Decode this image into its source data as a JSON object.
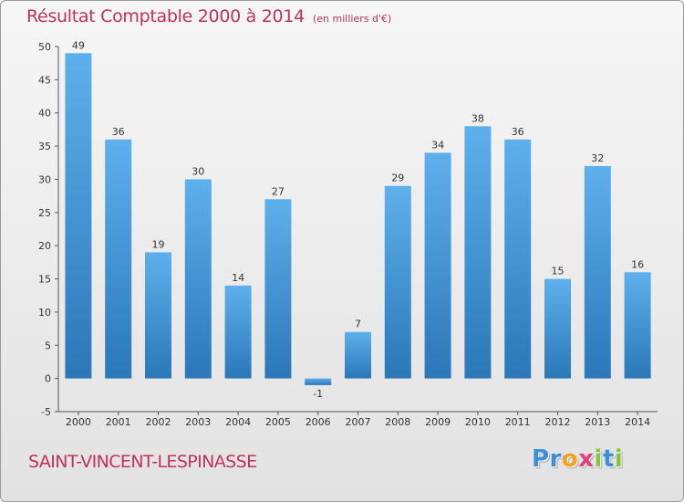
{
  "title": "Résultat Comptable 2000 à 2014",
  "subtitle": "(en milliers d'€)",
  "commune": "SAINT-VINCENT-LESPINASSE",
  "logo": {
    "text": "Proxiti",
    "letters": [
      "P",
      "r",
      "o",
      "x",
      "i",
      "t",
      "i"
    ],
    "colors": [
      "#3a8fd8",
      "#3a8fd8",
      "#f3a21e",
      "#e2407a",
      "#86c43e",
      "#3a8fd8",
      "#86c43e"
    ]
  },
  "colors": {
    "title": "#c0325a",
    "bar_light": "#5eb0ec",
    "bar_dark": "#2b77b8",
    "axis": "#555555"
  },
  "chart_data": {
    "type": "bar",
    "categories": [
      "2000",
      "2001",
      "2002",
      "2003",
      "2004",
      "2005",
      "2006",
      "2007",
      "2008",
      "2009",
      "2010",
      "2011",
      "2012",
      "2013",
      "2014"
    ],
    "values": [
      49,
      36,
      19,
      30,
      14,
      27,
      -1,
      7,
      29,
      34,
      38,
      36,
      15,
      32,
      16
    ],
    "ylim": [
      -5,
      50
    ],
    "yticks": [
      -5,
      0,
      5,
      10,
      15,
      20,
      25,
      30,
      35,
      40,
      45,
      50
    ],
    "grid": false
  }
}
